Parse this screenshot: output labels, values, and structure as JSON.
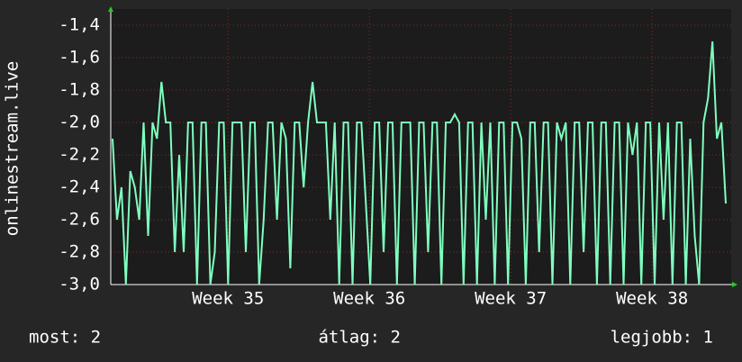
{
  "chart_data": {
    "type": "line",
    "y_label": "onlinestream.live",
    "color": "#7fffbf",
    "grid": true,
    "ylim": [
      -3.0,
      -1.3
    ],
    "yticks": [
      {
        "value": -3.0,
        "label": "-3,0"
      },
      {
        "value": -2.8,
        "label": "-2,8"
      },
      {
        "value": -2.6,
        "label": "-2,6"
      },
      {
        "value": -2.4,
        "label": "-2,4"
      },
      {
        "value": -2.2,
        "label": "-2,2"
      },
      {
        "value": -2.0,
        "label": "-2,0"
      },
      {
        "value": -1.8,
        "label": "-1,8"
      },
      {
        "value": -1.6,
        "label": "-1,6"
      },
      {
        "value": -1.4,
        "label": "-1,4"
      }
    ],
    "xlim": [
      34.17,
      38.56
    ],
    "xticks": [
      {
        "value": 35,
        "label": "Week 35"
      },
      {
        "value": 36,
        "label": "Week 36"
      },
      {
        "value": 37,
        "label": "Week 37"
      },
      {
        "value": 38,
        "label": "Week 38"
      }
    ],
    "values": [
      -2.1,
      -2.6,
      -2.4,
      -3.0,
      -2.3,
      -2.4,
      -2.6,
      -2.0,
      -2.7,
      -2.0,
      -2.1,
      -1.75,
      -2.0,
      -2.0,
      -2.8,
      -2.2,
      -2.8,
      -2.0,
      -2.0,
      -3.0,
      -2.0,
      -2.0,
      -3.0,
      -2.8,
      -2.0,
      -2.0,
      -3.0,
      -2.0,
      -2.0,
      -2.0,
      -2.8,
      -2.0,
      -2.0,
      -3.0,
      -2.6,
      -2.0,
      -2.0,
      -2.6,
      -2.0,
      -2.1,
      -2.9,
      -2.0,
      -2.0,
      -2.4,
      -2.0,
      -1.75,
      -2.0,
      -2.0,
      -2.0,
      -2.6,
      -2.0,
      -3.0,
      -2.0,
      -2.0,
      -3.0,
      -2.0,
      -2.0,
      -2.5,
      -3.0,
      -2.0,
      -2.0,
      -2.8,
      -2.0,
      -2.0,
      -3.0,
      -2.0,
      -2.0,
      -2.0,
      -3.0,
      -2.0,
      -2.0,
      -2.8,
      -2.0,
      -2.0,
      -3.0,
      -2.0,
      -2.0,
      -1.95,
      -2.0,
      -3.0,
      -2.0,
      -2.0,
      -3.0,
      -2.0,
      -2.6,
      -2.0,
      -3.0,
      -2.0,
      -2.0,
      -3.0,
      -2.0,
      -2.0,
      -2.1,
      -3.0,
      -2.0,
      -2.0,
      -2.8,
      -2.0,
      -2.0,
      -3.0,
      -2.0,
      -2.1,
      -2.0,
      -3.0,
      -2.0,
      -2.0,
      -2.8,
      -2.0,
      -2.0,
      -3.0,
      -2.0,
      -2.0,
      -3.0,
      -2.0,
      -2.0,
      -3.0,
      -2.0,
      -2.2,
      -2.0,
      -3.0,
      -2.0,
      -2.0,
      -3.0,
      -2.0,
      -2.6,
      -2.0,
      -3.0,
      -2.0,
      -2.0,
      -3.0,
      -2.1,
      -2.7,
      -3.0,
      -2.0,
      -1.85,
      -1.5,
      -2.1,
      -2.0,
      -2.5
    ],
    "footer": [
      "most: 2",
      "átlag: 2",
      "legjobb: 1"
    ]
  }
}
